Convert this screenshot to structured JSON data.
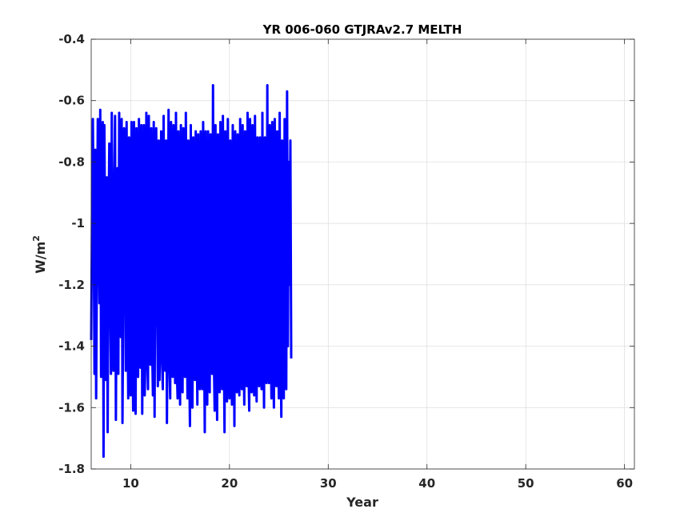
{
  "chart_data": {
    "type": "line",
    "title": "YR 006-060 GTJRAv2.7 MELTH",
    "xlabel": "Year",
    "ylabel_base": "W/m",
    "ylabel_superscript": "2",
    "xlim": [
      6,
      61
    ],
    "ylim": [
      -1.8,
      -0.4
    ],
    "xticks": [
      10,
      20,
      30,
      40,
      50,
      60
    ],
    "yticks": [
      -1.8,
      -1.6,
      -1.4,
      -1.2,
      -1,
      -0.8,
      -0.6,
      -0.4
    ],
    "xtick_labels": [
      "10",
      "20",
      "30",
      "40",
      "50",
      "60"
    ],
    "ytick_labels": [
      "-1.8",
      "-1.6",
      "-1.4",
      "-1.2",
      "-1",
      "-0.8",
      "-0.6",
      "-0.4"
    ],
    "grid": true,
    "line_color": "#0000ff",
    "series": [
      {
        "x_start": 6.0,
        "x_step": 0.0833333333,
        "values": [
          -1.38,
          -0.95,
          -0.66,
          -1.0,
          -1.49,
          -0.76,
          -1.57,
          -1.12,
          -0.66,
          -1.02,
          -1.26,
          -0.63,
          -1.5,
          -1.29,
          -0.67,
          -1.76,
          -0.68,
          -1.09,
          -1.51,
          -0.85,
          -1.68,
          -1.02,
          -0.74,
          -1.22,
          -1.49,
          -0.64,
          -1.33,
          -1.48,
          -0.88,
          -0.65,
          -1.64,
          -1.09,
          -0.82,
          -1.49,
          -0.64,
          -1.05,
          -1.37,
          -0.66,
          -1.65,
          -1.2,
          -0.69,
          -0.85,
          -1.48,
          -0.67,
          -1.23,
          -1.57,
          -0.72,
          -1.3,
          -1.56,
          -0.67,
          -1.34,
          -1.61,
          -0.67,
          -1.46,
          -1.62,
          -0.69,
          -1.22,
          -1.5,
          -0.66,
          -1.32,
          -1.47,
          -0.68,
          -1.62,
          -1.18,
          -0.68,
          -1.56,
          -1.41,
          -0.64,
          -1.41,
          -1.54,
          -0.65,
          -1.34,
          -1.46,
          -0.69,
          -1.39,
          -1.56,
          -0.67,
          -1.63,
          -0.95,
          -0.69,
          -1.21,
          -1.53,
          -0.73,
          -1.51,
          -1.25,
          -0.7,
          -1.44,
          -1.54,
          -0.65,
          -1.32,
          -1.48,
          -0.73,
          -1.65,
          -1.2,
          -0.63,
          -1.45,
          -1.57,
          -0.67,
          -1.36,
          -1.5,
          -0.68,
          -1.34,
          -1.52,
          -0.64,
          -1.47,
          -1.57,
          -0.7,
          -1.21,
          -1.59,
          -0.68,
          -1.4,
          -1.55,
          -0.69,
          -1.34,
          -1.5,
          -0.64,
          -1.26,
          -1.57,
          -0.73,
          -1.45,
          -1.66,
          -0.68,
          -1.43,
          -1.6,
          -0.72,
          -1.38,
          -1.51,
          -0.7,
          -1.28,
          -1.59,
          -0.71,
          -1.35,
          -1.54,
          -0.7,
          -1.37,
          -1.54,
          -0.67,
          -1.32,
          -1.68,
          -0.7,
          -1.29,
          -1.59,
          -0.7,
          -1.31,
          -1.55,
          -0.71,
          -1.33,
          -1.49,
          -0.55,
          -1.43,
          -1.61,
          -0.68,
          -1.25,
          -1.64,
          -0.71,
          -1.4,
          -1.55,
          -0.67,
          -1.36,
          -1.54,
          -0.65,
          -1.32,
          -1.68,
          -0.7,
          -1.39,
          -1.58,
          -0.66,
          -1.33,
          -1.57,
          -0.73,
          -1.42,
          -1.59,
          -0.68,
          -1.24,
          -1.66,
          -0.7,
          -1.37,
          -1.55,
          -0.71,
          -1.33,
          -1.56,
          -0.66,
          -1.42,
          -1.54,
          -0.68,
          -1.37,
          -1.59,
          -0.7,
          -1.37,
          -1.53,
          -0.64,
          -1.44,
          -1.61,
          -0.66,
          -1.32,
          -1.55,
          -0.68,
          -1.35,
          -1.56,
          -0.65,
          -1.41,
          -1.58,
          -0.72,
          -1.36,
          -1.53,
          -0.72,
          -1.38,
          -1.54,
          -0.64,
          -1.32,
          -1.6,
          -0.72,
          -1.45,
          -1.52,
          -0.55,
          -1.38,
          -1.52,
          -0.68,
          -1.32,
          -1.57,
          -0.67,
          -1.41,
          -1.6,
          -0.66,
          -1.35,
          -1.53,
          -0.7,
          -1.37,
          -1.57,
          -0.64,
          -1.3,
          -1.63,
          -0.73,
          -1.38,
          -1.57,
          -0.66,
          -1.35,
          -1.54,
          -0.57,
          -1.4,
          -0.8,
          -1.2,
          -0.73,
          -1.44
        ]
      }
    ]
  }
}
